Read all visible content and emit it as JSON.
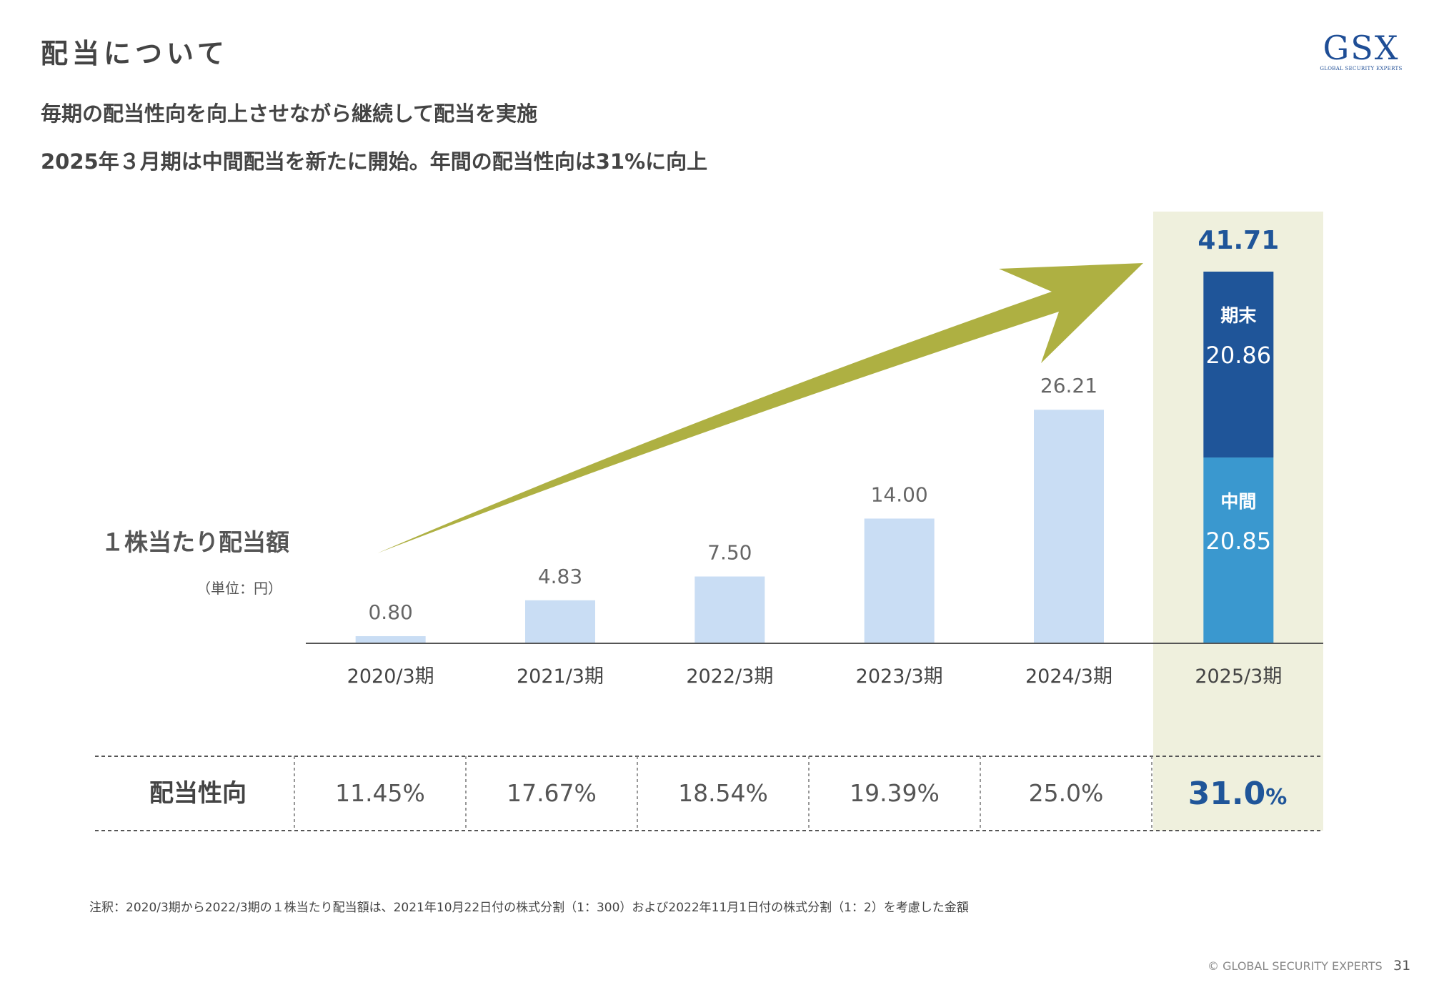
{
  "header": {
    "title": "配当について",
    "subtitle1": "毎期の配当性向を向上させながら継続して配当を実施",
    "subtitle2": "2025年３月期は中間配当を新たに開始。年間の配当性向は31%に向上"
  },
  "logo": {
    "text": "GSX",
    "subtext": "GLOBAL SECURITY EXPERTS"
  },
  "colors": {
    "bar": "#c9ddf4",
    "bar_final": "#1f5599",
    "bar_interim": "#3a98cf",
    "highlight": "#eff0dd",
    "arrow": "#aeb042",
    "label": "#666666",
    "accent_text": "#1f5599"
  },
  "chart_data": {
    "type": "bar",
    "ylabel": "１株当たり配当額",
    "unit": "（単位：円）",
    "categories": [
      "2020/3期",
      "2021/3期",
      "2022/3期",
      "2023/3期",
      "2024/3期",
      "2025/3期"
    ],
    "values": [
      0.8,
      4.83,
      7.5,
      14.0,
      26.21,
      41.71
    ],
    "value_labels": [
      "0.80",
      "4.83",
      "7.50",
      "14.00",
      "26.21",
      "41.71"
    ],
    "stacked_last": {
      "category": "2025/3期",
      "series": [
        {
          "name": "中間",
          "value": 20.85,
          "label": "20.85"
        },
        {
          "name": "期末",
          "value": 20.86,
          "label": "20.86"
        }
      ]
    },
    "ylim": [
      0,
      45
    ],
    "highlight_category": "2025/3期",
    "trend_arrow": true
  },
  "payout_table": {
    "row_label": "配当性向",
    "values": [
      "11.45%",
      "17.67%",
      "18.54%",
      "19.39%",
      "25.0%",
      "31.0%"
    ],
    "highlight_number": "31.0",
    "highlight_unit": "%"
  },
  "note": "注釈：2020/3期から2022/3期の１株当たり配当額は、2021年10月22日付の株式分割（1：300）および2022年11月1日付の株式分割（1：2）を考慮した金額",
  "footer": {
    "copyright": "© GLOBAL SECURITY EXPERTS",
    "page_number": "31"
  }
}
